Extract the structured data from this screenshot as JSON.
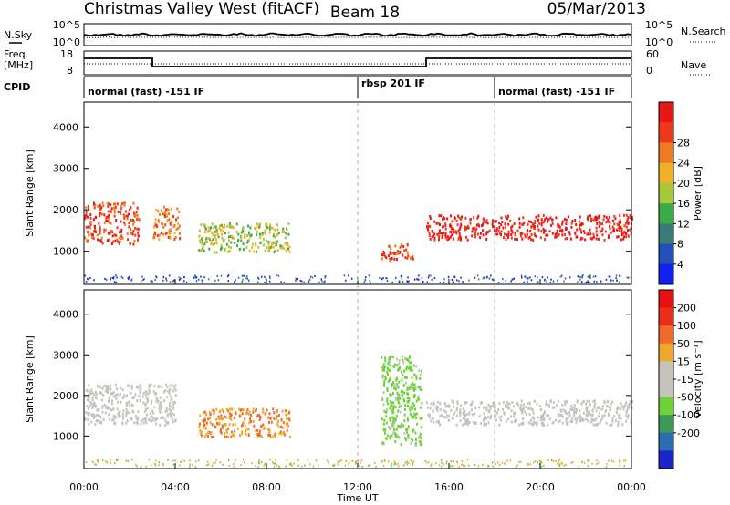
{
  "header": {
    "station": "Christmas Valley West (fitACF)",
    "beam": "Beam 18",
    "date": "05/Mar/2013"
  },
  "strip_panels": {
    "noise": {
      "left_label": "N.Sky",
      "right_label": "N.Search",
      "left_ticks": [
        "10^5",
        "10^0"
      ],
      "right_ticks": [
        "10^5",
        "10^0"
      ]
    },
    "freq": {
      "left_label_1": "Freq.",
      "left_label_2": "[MHz]",
      "right_label": "Nave",
      "left_ticks": [
        "18",
        "8"
      ],
      "right_ticks": [
        "60",
        "0"
      ]
    },
    "cpid": {
      "label": "CPID",
      "segments": [
        "normal (fast) -151 IF",
        "rbsp 201 IF",
        "normal (fast) -151 IF"
      ]
    }
  },
  "chart_data": [
    {
      "type": "heatmap",
      "panel": "power",
      "ylabel": "Slant Range [km]",
      "y_ticks": [
        "1000",
        "2000",
        "3000",
        "4000"
      ],
      "ylim": [
        200,
        4600
      ],
      "colorbar_label": "Power [dB]",
      "colorbar_ticks": [
        "4",
        "8",
        "12",
        "16",
        "20",
        "24",
        "28"
      ],
      "colorbar_colors": [
        "#1020f0",
        "#2050b8",
        "#3a7a78",
        "#3cac4a",
        "#a8c83a",
        "#f0b028",
        "#f07a22",
        "#ee3a1c",
        "#e81616"
      ],
      "echo_regions": [
        {
          "t": [
            0.0,
            2.4
          ],
          "range_km": [
            1200,
            2200
          ],
          "level_db": 24
        },
        {
          "t": [
            3.0,
            4.2
          ],
          "range_km": [
            1300,
            2100
          ],
          "level_db": 22
        },
        {
          "t": [
            5.0,
            9.0
          ],
          "range_km": [
            1000,
            1700
          ],
          "level_db": 14
        },
        {
          "t": [
            13.0,
            14.4
          ],
          "range_km": [
            800,
            1200
          ],
          "level_db": 26
        },
        {
          "t": [
            15.0,
            24.0
          ],
          "range_km": [
            1300,
            1900
          ],
          "level_db": 28
        }
      ]
    },
    {
      "type": "heatmap",
      "panel": "velocity",
      "ylabel": "Slant Range [km]",
      "y_ticks": [
        "1000",
        "2000",
        "3000",
        "4000"
      ],
      "ylim": [
        200,
        4600
      ],
      "colorbar_label": "Velocity [m s⁻¹]",
      "colorbar_ticks": [
        "200",
        "100",
        "50",
        "15",
        "-15",
        "-50",
        "-100",
        "-200"
      ],
      "colorbar_colors": [
        "#1a24c8",
        "#2c6cb4",
        "#3c9a56",
        "#6cd238",
        "#c4c4bc",
        "#c4c4bc",
        "#f0a82c",
        "#f06a2a",
        "#ea2e1c",
        "#e61212"
      ],
      "echo_regions": [
        {
          "t": [
            0.0,
            4.0
          ],
          "range_km": [
            1300,
            2300
          ],
          "velocity": 0
        },
        {
          "t": [
            5.0,
            9.0
          ],
          "range_km": [
            1000,
            1700
          ],
          "velocity": -40
        },
        {
          "t": [
            13.0,
            14.8
          ],
          "range_km": [
            800,
            3000
          ],
          "velocity": 60
        },
        {
          "t": [
            15.0,
            24.0
          ],
          "range_km": [
            1300,
            1900
          ],
          "velocity": 0
        }
      ]
    }
  ],
  "x_axis": {
    "label": "Time UT",
    "ticks": [
      "00:00",
      "04:00",
      "08:00",
      "12:00",
      "16:00",
      "20:00",
      "00:00"
    ]
  }
}
